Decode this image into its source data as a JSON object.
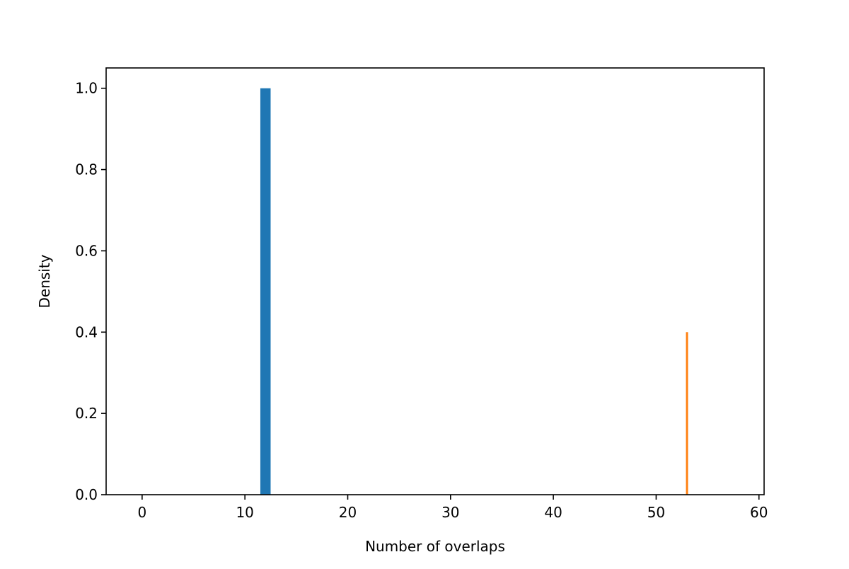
{
  "chart_data": {
    "type": "bar",
    "title": "",
    "xlabel": "Number of overlaps",
    "ylabel": "Density",
    "xlim": [
      -3.5,
      60.5
    ],
    "ylim": [
      0.0,
      1.05
    ],
    "x_ticks": [
      0,
      10,
      20,
      30,
      40,
      50,
      60
    ],
    "y_ticks": [
      0.0,
      0.2,
      0.4,
      0.6,
      0.8,
      1.0
    ],
    "x_tick_labels": [
      "0",
      "10",
      "20",
      "30",
      "40",
      "50",
      "60"
    ],
    "y_tick_labels": [
      "0.0",
      "0.2",
      "0.4",
      "0.6",
      "0.8",
      "1.0"
    ],
    "grid": false,
    "legend": "none",
    "series": [
      {
        "color": "#1f77b4",
        "bars": [
          {
            "x_start": 11.5,
            "x_end": 12.5,
            "value": 1.0
          }
        ]
      },
      {
        "color": "#ff7f0e",
        "bars": [
          {
            "x_start": 52.9,
            "x_end": 53.1,
            "value": 0.4
          }
        ]
      }
    ]
  }
}
